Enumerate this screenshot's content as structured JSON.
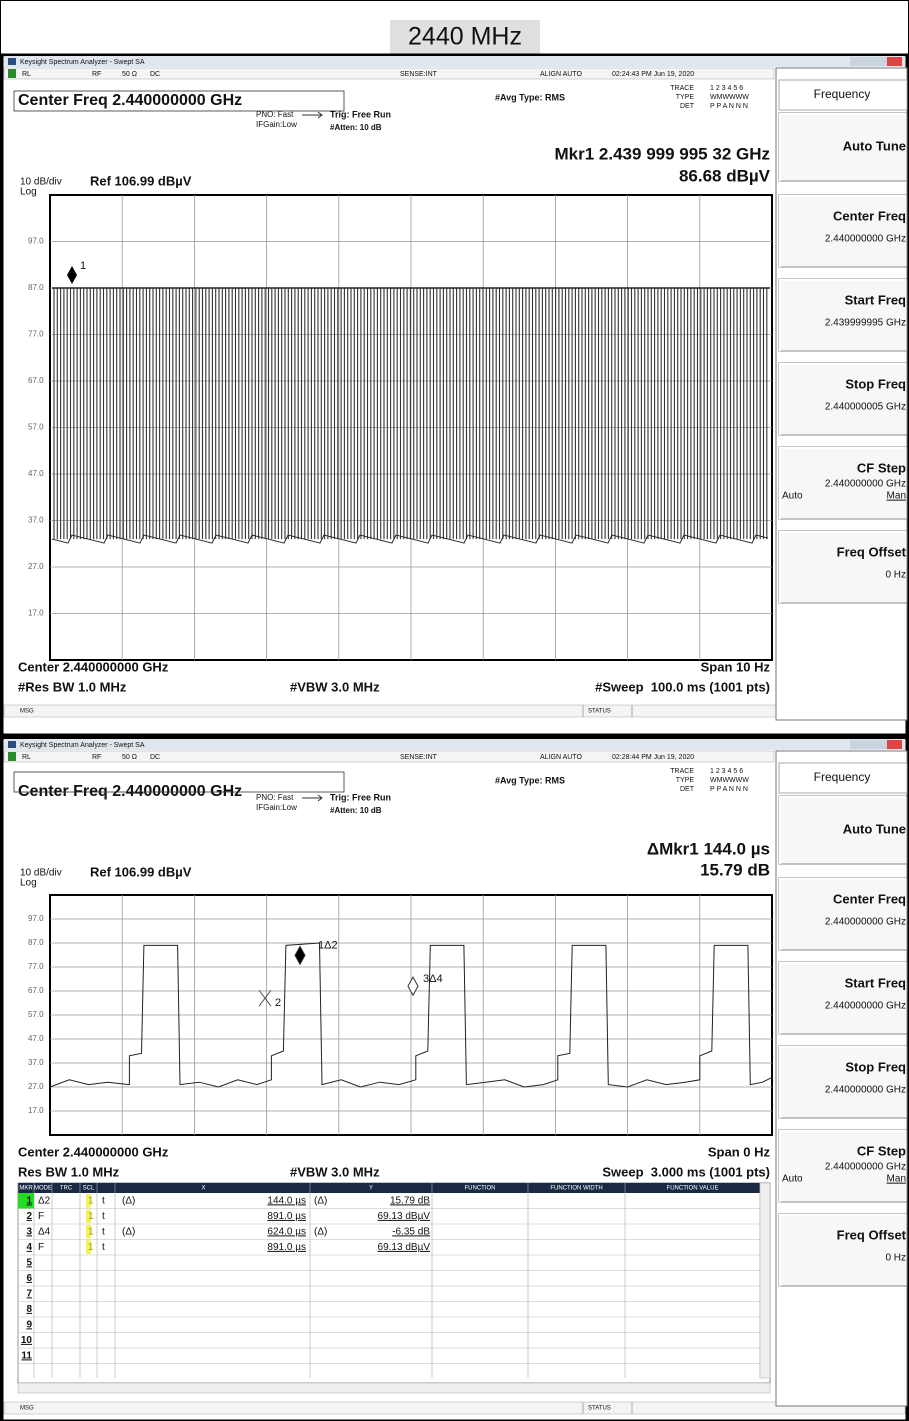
{
  "header": {
    "title": "2440 MHz"
  },
  "panels": [
    {
      "window_title": "Keysight Spectrum Analyzer - Swept SA",
      "status": [
        "RL",
        "RF",
        "50 Ω",
        "DC",
        "SENSE:INT",
        "ALIGN AUTO",
        "02:24:43 PM Jun 19, 2020"
      ],
      "center_freq": "Center Freq 2.440000000 GHz",
      "pno": "PNO: Fast",
      "ifgain": "IFGain:Low",
      "trig": "Trig: Free Run",
      "atten": "#Atten: 10 dB",
      "avg_type": "#Avg Type: RMS",
      "trace_info": [
        "TRACE",
        "1 2 3 4 5 6",
        "TYPE",
        "WMWWWW",
        "DET",
        "P P A N N N"
      ],
      "marker_readout": "Mkr1 2.439 999 995 32 GHz",
      "marker_value": "86.68 dBµV",
      "scale": "10 dB/div",
      "ref": "Ref 106.99 dBµV",
      "log": "Log",
      "plot": {
        "ylim": [
          6.99,
          106.99
        ],
        "yticks": [
          {
            "value": 16.99,
            "label": "17.0"
          },
          {
            "value": 26.99,
            "label": "27.0"
          },
          {
            "value": 36.99,
            "label": "37.0"
          },
          {
            "value": 46.99,
            "label": "47.0"
          },
          {
            "value": 56.99,
            "label": "57.0"
          },
          {
            "value": 66.99,
            "label": "67.0"
          },
          {
            "value": 76.99,
            "label": "77.0"
          },
          {
            "value": 86.99,
            "label": "87.0"
          },
          {
            "value": 96.99,
            "label": "97.0"
          }
        ],
        "trace": {
          "top": 87,
          "floor": 33
        },
        "markers": [
          "1"
        ]
      },
      "footer": {
        "center": "Center 2.440000000 GHz",
        "span": "Span 10 Hz",
        "rbw": "#Res BW 1.0 MHz",
        "vbw": "#VBW 3.0 MHz",
        "sweep": "#Sweep  100.0 ms (1001 pts)"
      },
      "softkeys": {
        "menu": "Frequency",
        "keys": [
          {
            "label": "Auto Tune"
          },
          {
            "label": "Center Freq",
            "value": "2.440000000 GHz"
          },
          {
            "label": "Start Freq",
            "value": "2.439999995 GHz"
          },
          {
            "label": "Stop Freq",
            "value": "2.440000005 GHz"
          },
          {
            "label": "CF Step",
            "value": "2.440000000 GHz",
            "auto": "Auto",
            "man": "Man"
          },
          {
            "label": "Freq Offset",
            "value": "0 Hz"
          }
        ]
      },
      "msg": "MSG",
      "status_label": "STATUS"
    },
    {
      "window_title": "Keysight Spectrum Analyzer - Swept SA",
      "status": [
        "RL",
        "RF",
        "50 Ω",
        "DC",
        "SENSE:INT",
        "ALIGN AUTO",
        "02:28:44 PM Jun 19, 2020"
      ],
      "center_freq": "Center Freq 2.440000000 GHz",
      "pno": "PNO: Fast",
      "ifgain": "IFGain:Low",
      "trig": "Trig: Free Run",
      "atten": "#Atten: 10 dB",
      "avg_type": "#Avg Type: RMS",
      "trace_info": [
        "TRACE",
        "1 2 3 4 5 6",
        "TYPE",
        "WMWWWW",
        "DET",
        "P P A N N N"
      ],
      "marker_readout": "ΔMkr1 144.0 µs",
      "marker_value": "15.79 dB",
      "scale": "10 dB/div",
      "ref": "Ref 106.99 dBµV",
      "log": "Log",
      "plot": {
        "ylim": [
          6.99,
          106.99
        ],
        "xlim": [
          0,
          3.0
        ],
        "yticks": [
          {
            "value": 16.99,
            "label": "17.0"
          },
          {
            "value": 26.99,
            "label": "27.0"
          },
          {
            "value": 36.99,
            "label": "37.0"
          },
          {
            "value": 46.99,
            "label": "47.0"
          },
          {
            "value": 56.99,
            "label": "57.0"
          },
          {
            "value": 66.99,
            "label": "67.0"
          },
          {
            "value": 76.99,
            "label": "77.0"
          },
          {
            "value": 86.99,
            "label": "87.0"
          },
          {
            "value": 96.99,
            "label": "97.0"
          }
        ],
        "trace": {
          "x": [
            0,
            0.08,
            0.16,
            0.24,
            0.33,
            0.33,
            0.38,
            0.39,
            0.53,
            0.54,
            0.62,
            0.7,
            0.78,
            0.86,
            0.92,
            0.92,
            0.97,
            0.98,
            1.12,
            1.13,
            1.21,
            1.29,
            1.37,
            1.45,
            1.52,
            1.52,
            1.57,
            1.58,
            1.72,
            1.73,
            1.81,
            1.89,
            1.97,
            2.05,
            2.11,
            2.11,
            2.16,
            2.17,
            2.31,
            2.32,
            2.4,
            2.48,
            2.56,
            2.64,
            2.7,
            2.7,
            2.75,
            2.76,
            2.9,
            2.91,
            2.96,
            3.0
          ],
          "y": [
            27,
            30,
            28,
            29,
            28,
            40,
            41,
            86,
            86,
            28,
            29,
            27,
            30,
            28,
            30,
            40,
            42,
            86,
            87,
            28,
            30,
            27,
            29,
            28,
            30,
            40,
            42,
            86,
            86,
            28,
            29,
            30,
            27,
            28,
            30,
            40,
            41,
            86,
            86,
            28,
            27,
            30,
            28,
            29,
            30,
            40,
            42,
            86,
            86,
            28,
            29,
            31
          ]
        },
        "markers": [
          "1Δ2",
          "2",
          "3Δ4"
        ]
      },
      "footer": {
        "center": "Center 2.440000000 GHz",
        "span": "Span 0 Hz",
        "rbw": "Res BW 1.0 MHz",
        "vbw": "#VBW 3.0 MHz",
        "sweep": "Sweep  3.000 ms (1001 pts)"
      },
      "table": {
        "headers": [
          "MKR",
          "MODE",
          "TRC",
          "SCL",
          "X",
          "Y",
          "FUNCTION",
          "FUNCTION WIDTH",
          "FUNCTION VALUE"
        ],
        "rows": [
          {
            "mkr": "1",
            "mode": "Δ2",
            "trc": "1",
            "scl": "t",
            "x_ref": "(Δ)",
            "x": "144.0 µs",
            "y_ref": "(Δ)",
            "y": "15.79 dB"
          },
          {
            "mkr": "2",
            "mode": "F",
            "trc": "1",
            "scl": "t",
            "x": "891.0 µs",
            "y": "69.13 dBµV"
          },
          {
            "mkr": "3",
            "mode": "Δ4",
            "trc": "1",
            "scl": "t",
            "x_ref": "(Δ)",
            "x": "624.0 µs",
            "y_ref": "(Δ)",
            "y": "-6.35 dB"
          },
          {
            "mkr": "4",
            "mode": "F",
            "trc": "1",
            "scl": "t",
            "x": "891.0 µs",
            "y": "69.13 dBµV"
          },
          {
            "mkr": "5"
          },
          {
            "mkr": "6"
          },
          {
            "mkr": "7"
          },
          {
            "mkr": "8"
          },
          {
            "mkr": "9"
          },
          {
            "mkr": "10"
          },
          {
            "mkr": "11"
          }
        ]
      },
      "softkeys": {
        "menu": "Frequency",
        "keys": [
          {
            "label": "Auto Tune"
          },
          {
            "label": "Center Freq",
            "value": "2.440000000 GHz"
          },
          {
            "label": "Start Freq",
            "value": "2.440000000 GHz"
          },
          {
            "label": "Stop Freq",
            "value": "2.440000000 GHz"
          },
          {
            "label": "CF Step",
            "value": "2.440000000 GHz",
            "auto": "Auto",
            "man": "Man"
          },
          {
            "label": "Freq Offset",
            "value": "0 Hz"
          }
        ]
      },
      "msg": "MSG",
      "status_label": "STATUS"
    }
  ]
}
